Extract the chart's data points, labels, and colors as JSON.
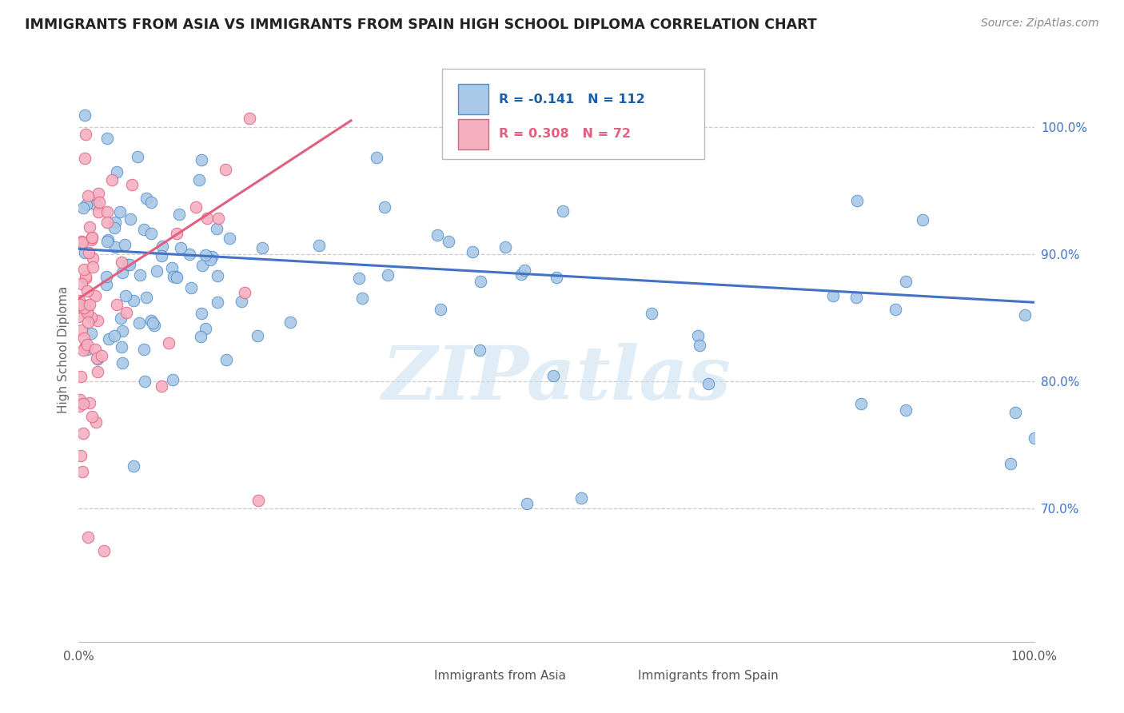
{
  "title": "IMMIGRANTS FROM ASIA VS IMMIGRANTS FROM SPAIN HIGH SCHOOL DIPLOMA CORRELATION CHART",
  "source": "Source: ZipAtlas.com",
  "ylabel": "High School Diploma",
  "ytick_labels": [
    "70.0%",
    "80.0%",
    "90.0%",
    "100.0%"
  ],
  "ytick_values": [
    0.7,
    0.8,
    0.9,
    1.0
  ],
  "xlim": [
    0.0,
    1.0
  ],
  "ylim": [
    0.595,
    1.055
  ],
  "legend_line1": "R = -0.141   N = 112",
  "legend_line2": "R = 0.308   N = 72",
  "color_asia_fill": "#aac8e8",
  "color_asia_edge": "#5090c8",
  "color_spain_fill": "#f5b0c0",
  "color_spain_edge": "#e06080",
  "color_trendline_asia": "#4472c4",
  "color_trendline_spain": "#e06080",
  "color_legend_asia": "#1a5fa8",
  "color_legend_spain": "#e06080",
  "color_ytick": "#4472c4",
  "watermark_text": "ZIPatlas",
  "watermark_color": "#cce0f0",
  "grid_color": "#cccccc",
  "bottom_legend_asia": "Immigrants from Asia",
  "bottom_legend_spain": "Immigrants from Spain",
  "asia_trendline_start_y": 0.904,
  "asia_trendline_end_y": 0.862,
  "spain_trendline_x0": 0.0,
  "spain_trendline_y0": 0.865,
  "spain_trendline_x1": 0.285,
  "spain_trendline_y1": 1.005
}
